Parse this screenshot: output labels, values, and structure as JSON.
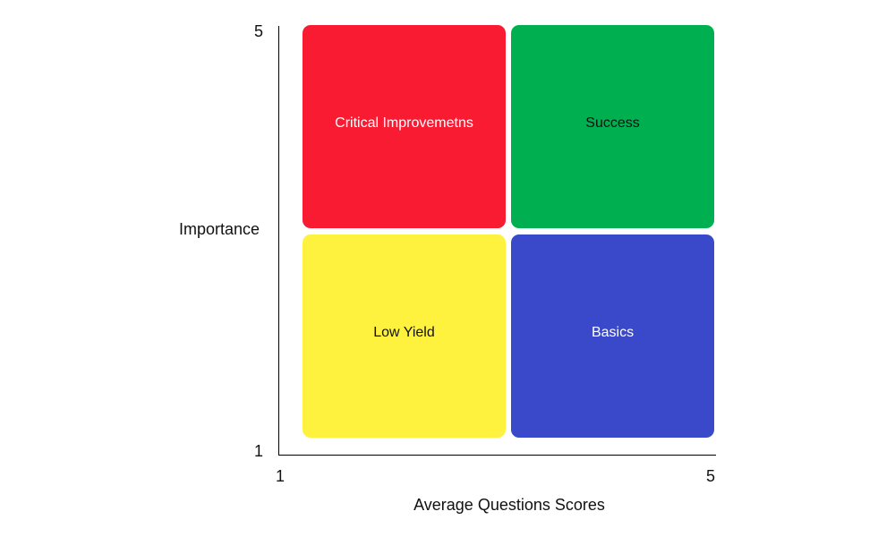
{
  "axes": {
    "y_title": "Importance",
    "x_title": "Average Questions Scores",
    "y_ticks": {
      "max": "5",
      "min": "1"
    },
    "x_ticks": {
      "min": "1",
      "max": "5"
    }
  },
  "quadrants": {
    "top_left": {
      "label": "Critical Improvemetns",
      "color": "#f81b32",
      "text_color": "#ffffff"
    },
    "top_right": {
      "label": "Success",
      "color": "#00b050",
      "text_color": "#111111"
    },
    "bottom_left": {
      "label": "Low Yield",
      "color": "#fff23e",
      "text_color": "#111111"
    },
    "bottom_right": {
      "label": "Basics",
      "color": "#3a49c9",
      "text_color": "#ffffff"
    }
  }
}
